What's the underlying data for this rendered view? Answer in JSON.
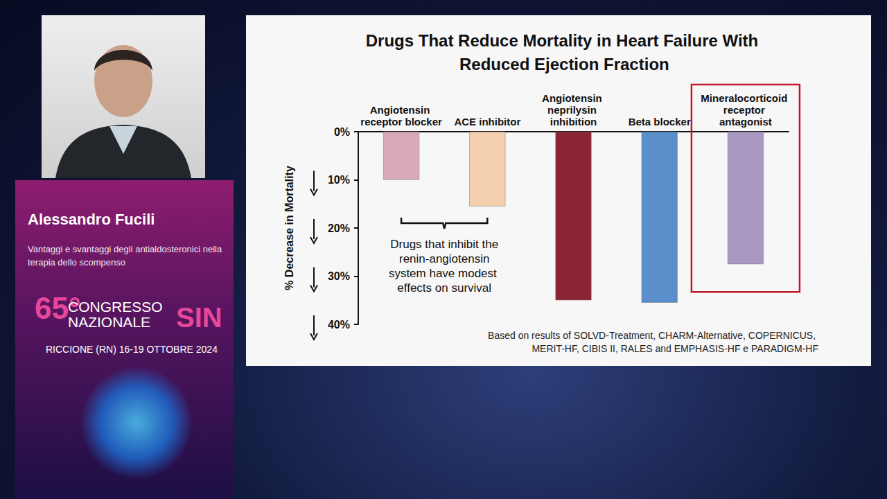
{
  "page": {
    "speaker": "Alessandro Fucili",
    "talk": "Vantaggi e svantaggi degli antialdosteronici nella terapia dello scompenso",
    "congress": {
      "number": "65°",
      "words": [
        "CONGRESSO",
        "NAZIONALE"
      ],
      "acronym": "SIN",
      "place_date": "RICCIONE (RN) 16-19 OTTOBRE 2024"
    }
  },
  "chart_data": {
    "type": "bar",
    "title": "Drugs That Reduce Mortality in Heart Failure With Reduced Ejection Fraction",
    "categories": [
      "Angiotensin receptor blocker",
      "ACE inhibitor",
      "Angiotensin neprilysin inhibition",
      "Beta blocker",
      "Mineralocorticoid receptor antagonist"
    ],
    "values": [
      10,
      15.5,
      35,
      35.5,
      27.5
    ],
    "colors": [
      "#d8a9b6",
      "#f4d0b0",
      "#8b2433",
      "#5b8fcb",
      "#a898c2"
    ],
    "ylabel": "% Decrease in Mortality",
    "ylim": [
      0,
      40
    ],
    "yticks": [
      {
        "value": 0,
        "label": "0%"
      },
      {
        "value": 10,
        "label": "10%"
      },
      {
        "value": 20,
        "label": "20%"
      },
      {
        "value": 30,
        "label": "30%"
      },
      {
        "value": 40,
        "label": "40%"
      }
    ],
    "grid": false,
    "annotation": "Drugs that inhibit the renin-angiotensin system have modest effects on survival",
    "note": "Based on results of SOLVD-Treatment, CHARM-Alternative, COPERNICUS, MERIT-HF, CIBIS II, RALES and EMPHASIS-HF e PARADIGM-HF"
  }
}
